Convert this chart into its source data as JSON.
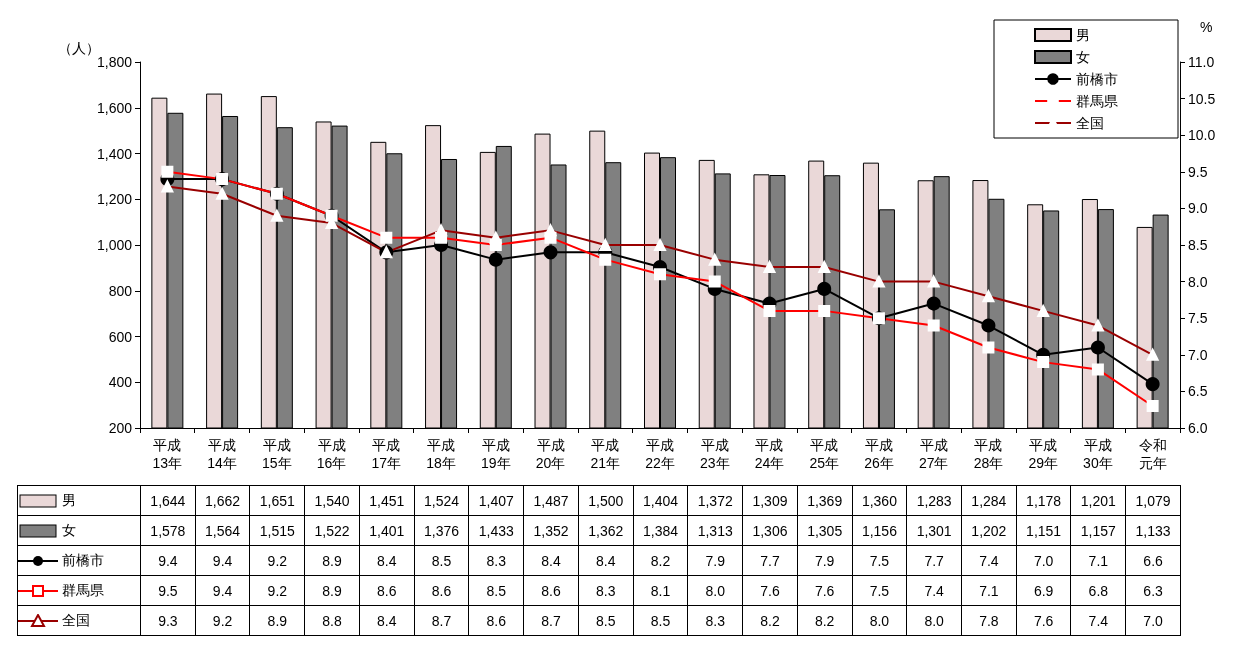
{
  "chart_data": {
    "type": "bar",
    "ylabel": "（人）",
    "y2label": "%",
    "legend": "top right",
    "categories": [
      "平成13年",
      "平成14年",
      "平成15年",
      "平成16年",
      "平成17年",
      "平成18年",
      "平成19年",
      "平成20年",
      "平成21年",
      "平成22年",
      "平成23年",
      "平成24年",
      "平成25年",
      "平成26年",
      "平成27年",
      "平成28年",
      "平成29年",
      "平成30年",
      "令和元年"
    ],
    "ylim": [
      200,
      1800
    ],
    "yticks": [
      {
        "value": 200,
        "label": "200"
      },
      {
        "value": 400,
        "label": "400"
      },
      {
        "value": 600,
        "label": "600"
      },
      {
        "value": 800,
        "label": "800"
      },
      {
        "value": 1000,
        "label": "1,000"
      },
      {
        "value": 1200,
        "label": "1,200"
      },
      {
        "value": 1400,
        "label": "1,400"
      },
      {
        "value": 1600,
        "label": "1,600"
      },
      {
        "value": 1800,
        "label": "1,800"
      }
    ],
    "y2lim": [
      6,
      11
    ],
    "y2ticks": [
      {
        "value": 6,
        "label": "6.0"
      },
      {
        "value": 6.5,
        "label": "6.5"
      },
      {
        "value": 7,
        "label": "7.0"
      },
      {
        "value": 7.5,
        "label": "7.5"
      },
      {
        "value": 8,
        "label": "8.0"
      },
      {
        "value": 8.5,
        "label": "8.5"
      },
      {
        "value": 9,
        "label": "9.0"
      },
      {
        "value": 9.5,
        "label": "9.5"
      },
      {
        "value": 10,
        "label": "10.0"
      },
      {
        "value": 10.5,
        "label": "10.5"
      },
      {
        "value": 11,
        "label": "11.0"
      }
    ],
    "series": [
      {
        "name": "男",
        "color": "#ead8d8",
        "values": [
          1644,
          1662,
          1651,
          1540,
          1451,
          1524,
          1407,
          1487,
          1500,
          1404,
          1372,
          1309,
          1369,
          1360,
          1283,
          1284,
          1178,
          1201,
          1079
        ],
        "value_labels": [
          "1,644",
          "1,662",
          "1,651",
          "1,540",
          "1,451",
          "1,524",
          "1,407",
          "1,487",
          "1,500",
          "1,404",
          "1,372",
          "1,309",
          "1,369",
          "1,360",
          "1,283",
          "1,284",
          "1,178",
          "1,201",
          "1,079"
        ]
      },
      {
        "name": "女",
        "color": "#808080",
        "values": [
          1578,
          1564,
          1515,
          1522,
          1401,
          1376,
          1433,
          1352,
          1362,
          1384,
          1313,
          1306,
          1305,
          1156,
          1301,
          1202,
          1151,
          1157,
          1133
        ],
        "value_labels": [
          "1,578",
          "1,564",
          "1,515",
          "1,522",
          "1,401",
          "1,376",
          "1,433",
          "1,352",
          "1,362",
          "1,384",
          "1,313",
          "1,306",
          "1,305",
          "1,156",
          "1,301",
          "1,202",
          "1,151",
          "1,157",
          "1,133"
        ]
      },
      {
        "name": "前橋市",
        "type": "line",
        "axis": "y2",
        "marker": "circle",
        "color": "#000000",
        "values": [
          9.4,
          9.4,
          9.2,
          8.9,
          8.4,
          8.5,
          8.3,
          8.4,
          8.4,
          8.2,
          7.9,
          7.7,
          7.9,
          7.5,
          7.7,
          7.4,
          7.0,
          7.1,
          6.6
        ],
        "value_labels": [
          "9.4",
          "9.4",
          "9.2",
          "8.9",
          "8.4",
          "8.5",
          "8.3",
          "8.4",
          "8.4",
          "8.2",
          "7.9",
          "7.7",
          "7.9",
          "7.5",
          "7.7",
          "7.4",
          "7.0",
          "7.1",
          "6.6"
        ]
      },
      {
        "name": "群馬県",
        "type": "line",
        "axis": "y2",
        "marker": "square",
        "color": "#ff0000",
        "values": [
          9.5,
          9.4,
          9.2,
          8.9,
          8.6,
          8.6,
          8.5,
          8.6,
          8.3,
          8.1,
          8.0,
          7.6,
          7.6,
          7.5,
          7.4,
          7.1,
          6.9,
          6.8,
          6.3
        ],
        "value_labels": [
          "9.5",
          "9.4",
          "9.2",
          "8.9",
          "8.6",
          "8.6",
          "8.5",
          "8.6",
          "8.3",
          "8.1",
          "8.0",
          "7.6",
          "7.6",
          "7.5",
          "7.4",
          "7.1",
          "6.9",
          "6.8",
          "6.3"
        ]
      },
      {
        "name": "全国",
        "type": "line",
        "axis": "y2",
        "marker": "triangle",
        "color": "#990000",
        "values": [
          9.3,
          9.2,
          8.9,
          8.8,
          8.4,
          8.7,
          8.6,
          8.7,
          8.5,
          8.5,
          8.3,
          8.2,
          8.2,
          8.0,
          8.0,
          7.8,
          7.6,
          7.4,
          7.0
        ],
        "value_labels": [
          "9.3",
          "9.2",
          "8.9",
          "8.8",
          "8.4",
          "8.7",
          "8.6",
          "8.7",
          "8.5",
          "8.5",
          "8.3",
          "8.2",
          "8.2",
          "8.0",
          "8.0",
          "7.8",
          "7.6",
          "7.4",
          "7.0"
        ]
      }
    ]
  }
}
